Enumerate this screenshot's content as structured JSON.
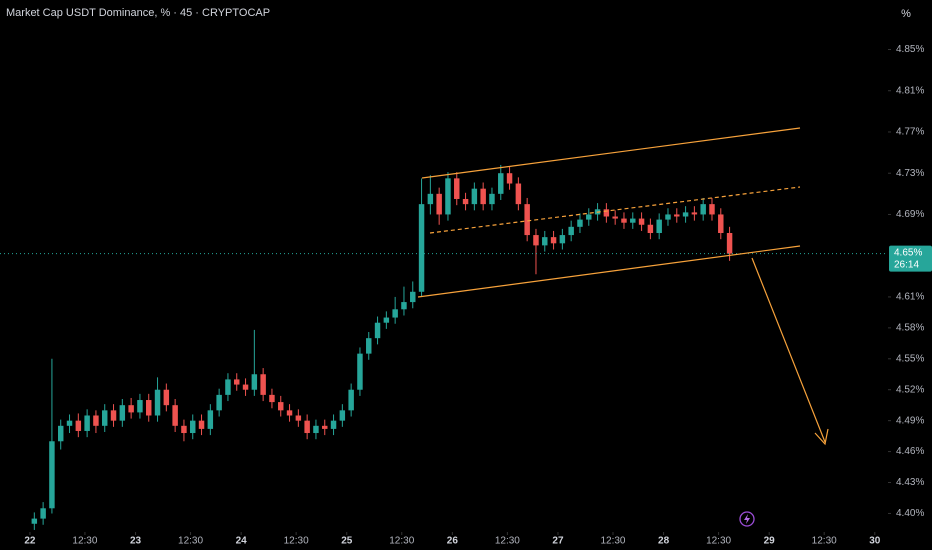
{
  "chart_data": {
    "type": "candlestick",
    "title": "Market Cap USDT Dominance, % · 45 · CRYPTOCAP",
    "axis_button": "%",
    "up_color": "#26a69a",
    "down_color": "#ef5350",
    "grid": false,
    "xlim": [
      -6.8,
      195
    ],
    "ylim": [
      4.382,
      4.898
    ],
    "xticks": [
      {
        "value": 0,
        "label": "22"
      },
      {
        "value": 12.5,
        "label": "12:30"
      },
      {
        "value": 24,
        "label": "23"
      },
      {
        "value": 36.5,
        "label": "12:30"
      },
      {
        "value": 48,
        "label": "24"
      },
      {
        "value": 60.5,
        "label": "12:30"
      },
      {
        "value": 72,
        "label": "25"
      },
      {
        "value": 84.5,
        "label": "12:30"
      },
      {
        "value": 96,
        "label": "26"
      },
      {
        "value": 108.5,
        "label": "12:30"
      },
      {
        "value": 120,
        "label": "27"
      },
      {
        "value": 132.5,
        "label": "12:30"
      },
      {
        "value": 144,
        "label": "28"
      },
      {
        "value": 156.5,
        "label": "12:30"
      },
      {
        "value": 168,
        "label": "29"
      },
      {
        "value": 180.5,
        "label": "12:30"
      },
      {
        "value": 192,
        "label": "30"
      }
    ],
    "yticks": [
      {
        "value": 4.85,
        "label": "4.85%"
      },
      {
        "value": 4.81,
        "label": "4.81%"
      },
      {
        "value": 4.77,
        "label": "4.77%"
      },
      {
        "value": 4.73,
        "label": "4.73%"
      },
      {
        "value": 4.69,
        "label": "4.69%"
      },
      {
        "value": 4.61,
        "label": "4.61%"
      },
      {
        "value": 4.58,
        "label": "4.58%"
      },
      {
        "value": 4.55,
        "label": "4.55%"
      },
      {
        "value": 4.52,
        "label": "4.52%"
      },
      {
        "value": 4.49,
        "label": "4.49%"
      },
      {
        "value": 4.46,
        "label": "4.46%"
      },
      {
        "value": 4.43,
        "label": "4.43%"
      },
      {
        "value": 4.4,
        "label": "4.40%"
      }
    ],
    "last_price": {
      "value": 4.652,
      "label": "4.65%"
    },
    "countdown": "26:14",
    "x": [
      1,
      3,
      5,
      7,
      9,
      11,
      13,
      15,
      17,
      19,
      21,
      23,
      25,
      27,
      29,
      31,
      33,
      35,
      37,
      39,
      41,
      43,
      45,
      47,
      49,
      51,
      53,
      55,
      57,
      59,
      61,
      63,
      65,
      67,
      69,
      71,
      73,
      75,
      77,
      79,
      81,
      83,
      85,
      87,
      89,
      91,
      93,
      95,
      97,
      99,
      101,
      103,
      105,
      107,
      109,
      111,
      113,
      115,
      117,
      119,
      121,
      123,
      125,
      127,
      129,
      131,
      133,
      135,
      137,
      139,
      141,
      143,
      145,
      147,
      149,
      151,
      153,
      155,
      157,
      159
    ],
    "open": [
      4.39,
      4.395,
      4.405,
      4.47,
      4.485,
      4.49,
      4.48,
      4.495,
      4.485,
      4.5,
      4.49,
      4.505,
      4.498,
      4.51,
      4.495,
      4.52,
      4.505,
      4.485,
      4.478,
      4.49,
      4.482,
      4.5,
      4.515,
      4.53,
      4.525,
      4.52,
      4.535,
      4.515,
      4.508,
      4.5,
      4.495,
      4.49,
      4.478,
      4.485,
      4.482,
      4.49,
      4.5,
      4.52,
      4.555,
      4.57,
      4.585,
      4.59,
      4.598,
      4.605,
      4.615,
      4.7,
      4.71,
      4.69,
      4.725,
      4.705,
      4.7,
      4.715,
      4.7,
      4.71,
      4.73,
      4.72,
      4.7,
      4.67,
      4.66,
      4.668,
      4.662,
      4.67,
      4.678,
      4.685,
      4.69,
      4.695,
      4.688,
      4.686,
      4.682,
      4.686,
      4.68,
      4.672,
      4.685,
      4.69,
      4.688,
      4.692,
      4.69,
      4.7,
      4.69,
      4.672
    ],
    "high": [
      4.401,
      4.411,
      4.55,
      4.491,
      4.496,
      4.497,
      4.501,
      4.5,
      4.506,
      4.506,
      4.511,
      4.512,
      4.516,
      4.516,
      4.532,
      4.526,
      4.511,
      4.491,
      4.496,
      4.496,
      4.506,
      4.521,
      4.536,
      4.536,
      4.531,
      4.578,
      4.541,
      4.521,
      4.514,
      4.506,
      4.501,
      4.496,
      4.491,
      4.491,
      4.496,
      4.506,
      4.526,
      4.561,
      4.576,
      4.591,
      4.596,
      4.61,
      4.62,
      4.625,
      4.725,
      4.728,
      4.716,
      4.731,
      4.731,
      4.711,
      4.721,
      4.721,
      4.716,
      4.738,
      4.736,
      4.726,
      4.706,
      4.676,
      4.674,
      4.674,
      4.676,
      4.684,
      4.691,
      4.696,
      4.701,
      4.701,
      4.694,
      4.692,
      4.692,
      4.692,
      4.686,
      4.691,
      4.696,
      4.696,
      4.698,
      4.698,
      4.706,
      4.706,
      4.696,
      4.678
    ],
    "low": [
      4.384,
      4.389,
      4.4,
      4.462,
      4.478,
      4.474,
      4.474,
      4.478,
      4.479,
      4.484,
      4.484,
      4.492,
      4.492,
      4.489,
      4.489,
      4.499,
      4.479,
      4.47,
      4.472,
      4.476,
      4.476,
      4.494,
      4.509,
      4.519,
      4.514,
      4.514,
      4.509,
      4.502,
      4.494,
      4.489,
      4.484,
      4.472,
      4.472,
      4.476,
      4.476,
      4.484,
      4.494,
      4.514,
      4.549,
      4.564,
      4.579,
      4.584,
      4.592,
      4.599,
      4.61,
      4.69,
      4.68,
      4.684,
      4.699,
      4.694,
      4.694,
      4.694,
      4.694,
      4.704,
      4.714,
      4.694,
      4.664,
      4.632,
      4.654,
      4.656,
      4.656,
      4.664,
      4.672,
      4.679,
      4.684,
      4.682,
      4.68,
      4.676,
      4.676,
      4.674,
      4.666,
      4.666,
      4.679,
      4.682,
      4.682,
      4.684,
      4.684,
      4.684,
      4.666,
      4.645
    ],
    "close": [
      4.395,
      4.405,
      4.47,
      4.485,
      4.49,
      4.48,
      4.495,
      4.485,
      4.5,
      4.49,
      4.505,
      4.498,
      4.51,
      4.495,
      4.52,
      4.505,
      4.485,
      4.478,
      4.49,
      4.482,
      4.5,
      4.515,
      4.53,
      4.525,
      4.52,
      4.535,
      4.515,
      4.508,
      4.5,
      4.495,
      4.49,
      4.478,
      4.485,
      4.482,
      4.49,
      4.5,
      4.52,
      4.555,
      4.57,
      4.585,
      4.59,
      4.598,
      4.605,
      4.615,
      4.7,
      4.71,
      4.69,
      4.725,
      4.705,
      4.7,
      4.715,
      4.7,
      4.71,
      4.73,
      4.72,
      4.7,
      4.67,
      4.66,
      4.668,
      4.662,
      4.67,
      4.678,
      4.685,
      4.69,
      4.695,
      4.688,
      4.686,
      4.682,
      4.686,
      4.68,
      4.672,
      4.685,
      4.69,
      4.688,
      4.692,
      4.69,
      4.7,
      4.69,
      4.672,
      4.652
    ]
  }
}
